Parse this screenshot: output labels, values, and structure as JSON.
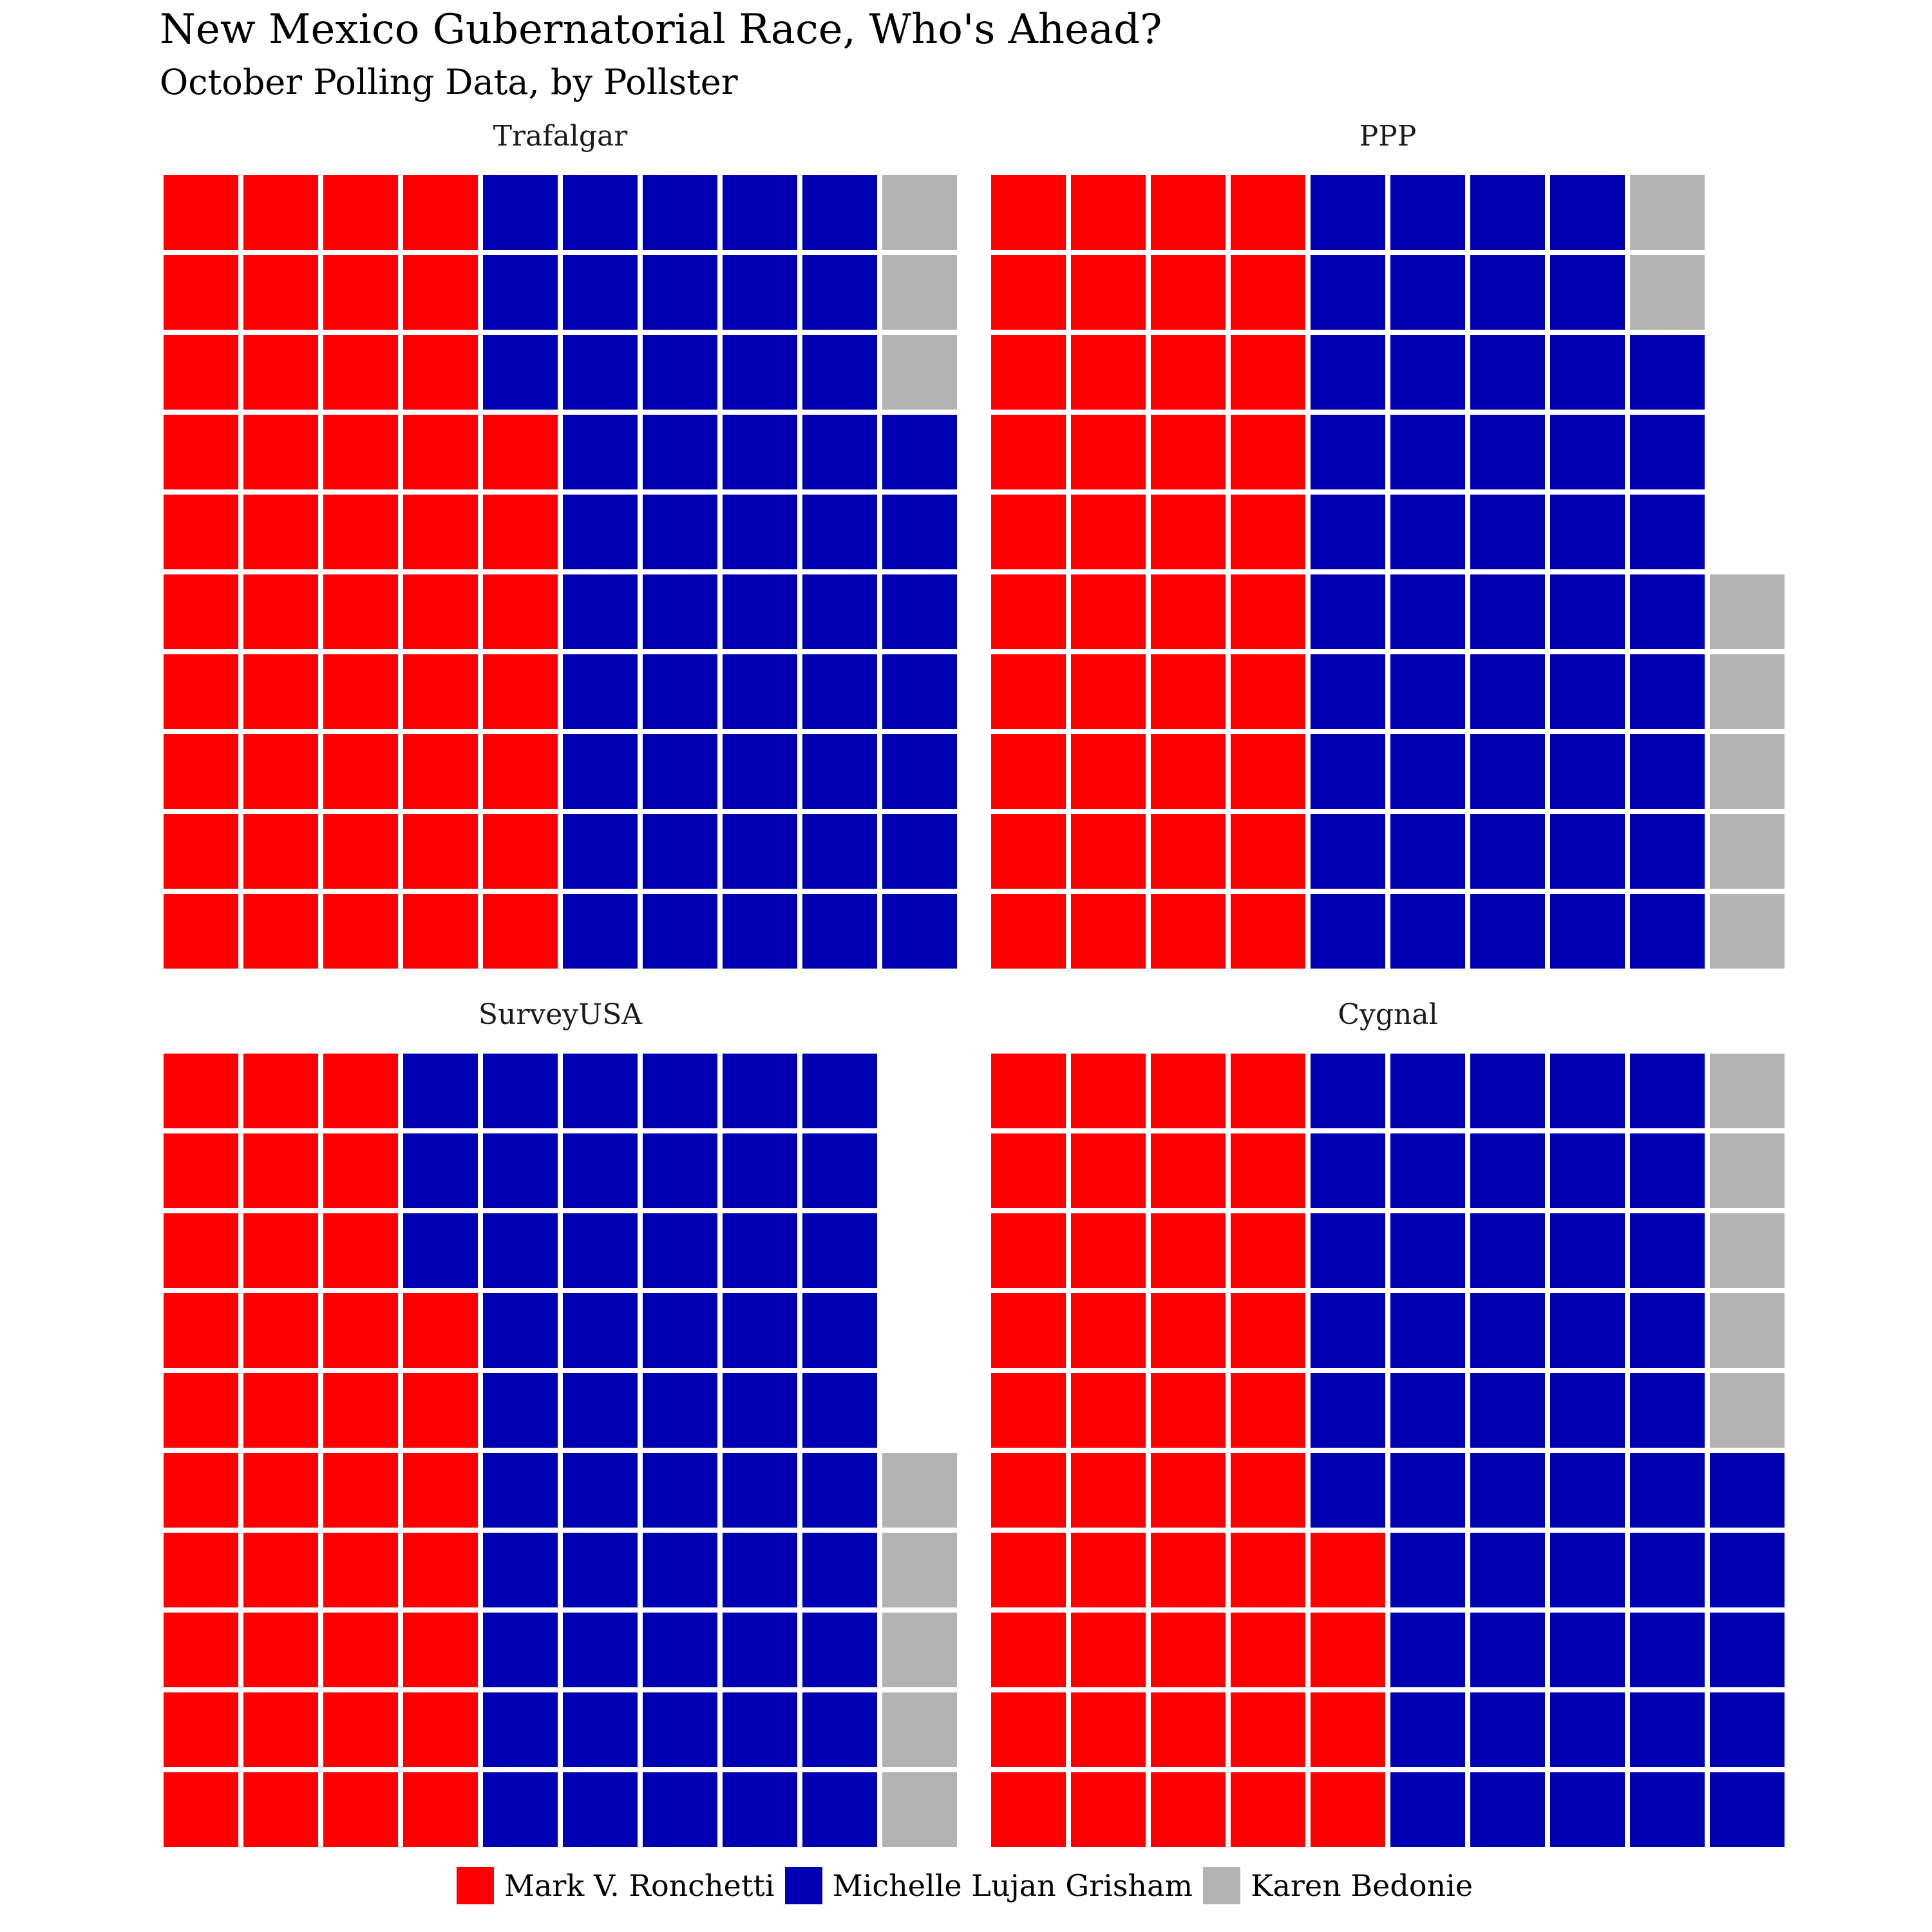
{
  "chart_data": {
    "type": "waffle",
    "title": "New Mexico Gubernatorial Race, Who's Ahead?",
    "subtitle": "October Polling Data, by Pollster",
    "grid": {
      "columns": 10,
      "rows": 10,
      "fill_order": "column-major, bottom-to-top, left-to-right"
    },
    "categories": [
      "Mark V. Ronchetti",
      "Michelle Lujan Grisham",
      "Karen Bedonie"
    ],
    "colors": {
      "Mark V. Ronchetti": "#ff0000",
      "Michelle Lujan Grisham": "#0000b3",
      "Karen Bedonie": "#b3b3b3"
    },
    "legend_position": "bottom",
    "panels": [
      {
        "name": "Trafalgar",
        "values": [
          47,
          50,
          4
        ]
      },
      {
        "name": "PPP",
        "values": [
          40,
          48,
          7
        ]
      },
      {
        "name": "SurveyUSA",
        "values": [
          37,
          53,
          5
        ]
      },
      {
        "name": "Cygnal",
        "values": [
          44,
          51,
          5
        ]
      }
    ]
  }
}
